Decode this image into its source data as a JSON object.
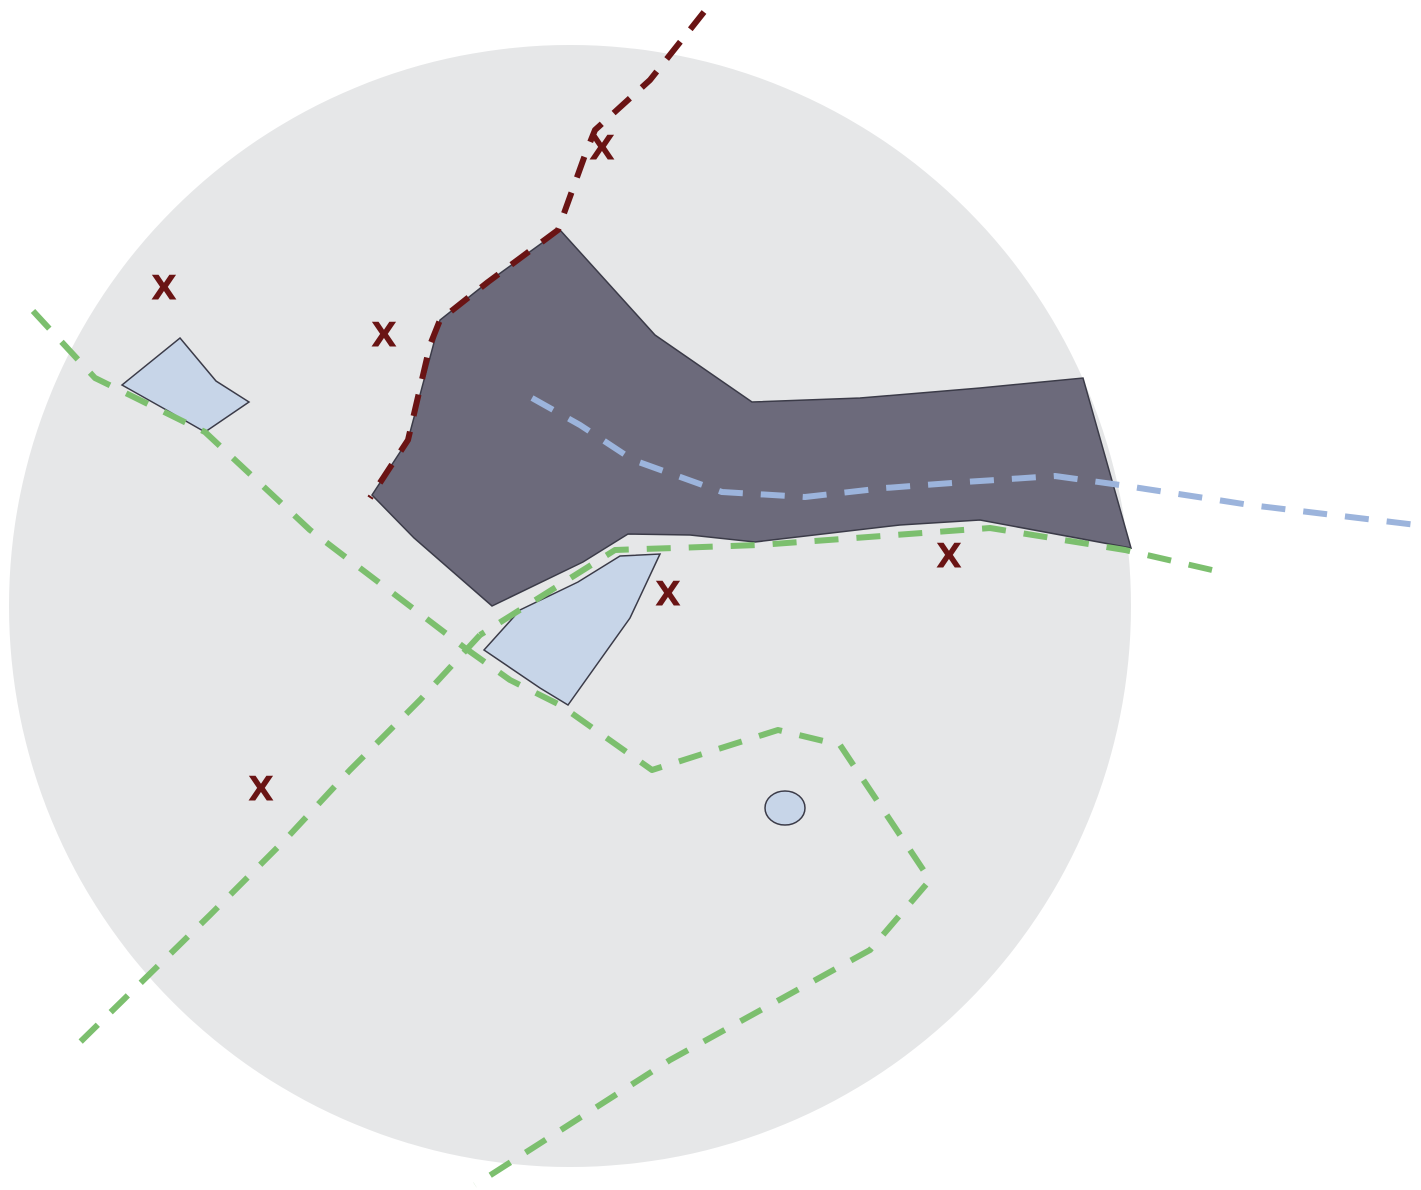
{
  "map": {
    "colors": {
      "background": "#ffffff",
      "area": "#e6e7e8",
      "main_body": "#6c6a7b",
      "small_body": "#c7d5e8",
      "outline": "#3b3b48",
      "green_path": "#7cbf6e",
      "red_path": "#6a1414",
      "blue_path": "#9cb4dc",
      "marker": "#6a1414"
    },
    "markers": [
      {
        "label": "X"
      },
      {
        "label": "X"
      },
      {
        "label": "X"
      },
      {
        "label": "X"
      },
      {
        "label": "X"
      },
      {
        "label": "X"
      }
    ]
  }
}
